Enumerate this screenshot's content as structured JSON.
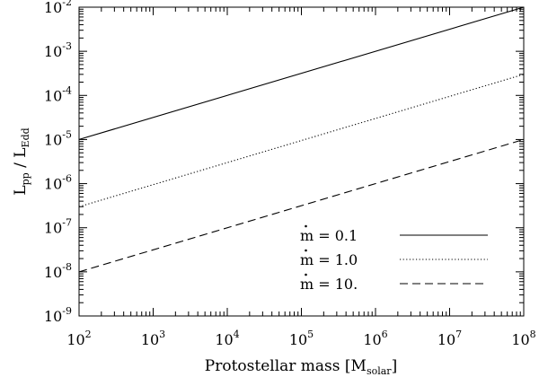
{
  "chart_data": {
    "type": "line",
    "xscale": "log",
    "yscale": "log",
    "xlim": [
      100,
      100000000
    ],
    "ylim": [
      1e-09,
      0.01
    ],
    "xlabel": {
      "pre": "Protostellar mass [M",
      "sub": "solar",
      "post": "]"
    },
    "ylabel": {
      "a": "L",
      "a_sub": "pp",
      "sep": " / ",
      "b": "L",
      "b_sub": "Edd"
    },
    "x_ticks": [
      {
        "value": 100,
        "base": "10",
        "exp": "2"
      },
      {
        "value": 1000,
        "base": "10",
        "exp": "3"
      },
      {
        "value": 10000,
        "base": "10",
        "exp": "4"
      },
      {
        "value": 100000,
        "base": "10",
        "exp": "5"
      },
      {
        "value": 1000000,
        "base": "10",
        "exp": "6"
      },
      {
        "value": 10000000,
        "base": "10",
        "exp": "7"
      },
      {
        "value": 100000000,
        "base": "10",
        "exp": "8"
      }
    ],
    "y_ticks": [
      {
        "value": 1e-09,
        "base": "10",
        "exp": "-9"
      },
      {
        "value": 1e-08,
        "base": "10",
        "exp": "-8"
      },
      {
        "value": 1e-07,
        "base": "10",
        "exp": "-7"
      },
      {
        "value": 1e-06,
        "base": "10",
        "exp": "-6"
      },
      {
        "value": 1e-05,
        "base": "10",
        "exp": "-5"
      },
      {
        "value": 0.0001,
        "base": "10",
        "exp": "-4"
      },
      {
        "value": 0.001,
        "base": "10",
        "exp": "-3"
      },
      {
        "value": 0.01,
        "base": "10",
        "exp": "-2"
      }
    ],
    "legend_position": "lower-right",
    "grid": false,
    "series": [
      {
        "name": "ṁ = 0.1",
        "sym": "m",
        "eq": " =  ",
        "val": "0.1",
        "style": "solid",
        "x": [
          100,
          100000000
        ],
        "y": [
          1e-05,
          0.01
        ]
      },
      {
        "name": "ṁ = 1.0",
        "sym": "m",
        "eq": " =  ",
        "val": "1.0",
        "style": "dotted",
        "x": [
          100,
          100000000
        ],
        "y": [
          3e-07,
          0.0003
        ]
      },
      {
        "name": "ṁ = 10.",
        "sym": "m",
        "eq": " =  ",
        "val": "10.",
        "style": "dashed",
        "x": [
          100,
          100000000
        ],
        "y": [
          1e-08,
          1e-05
        ]
      }
    ]
  }
}
